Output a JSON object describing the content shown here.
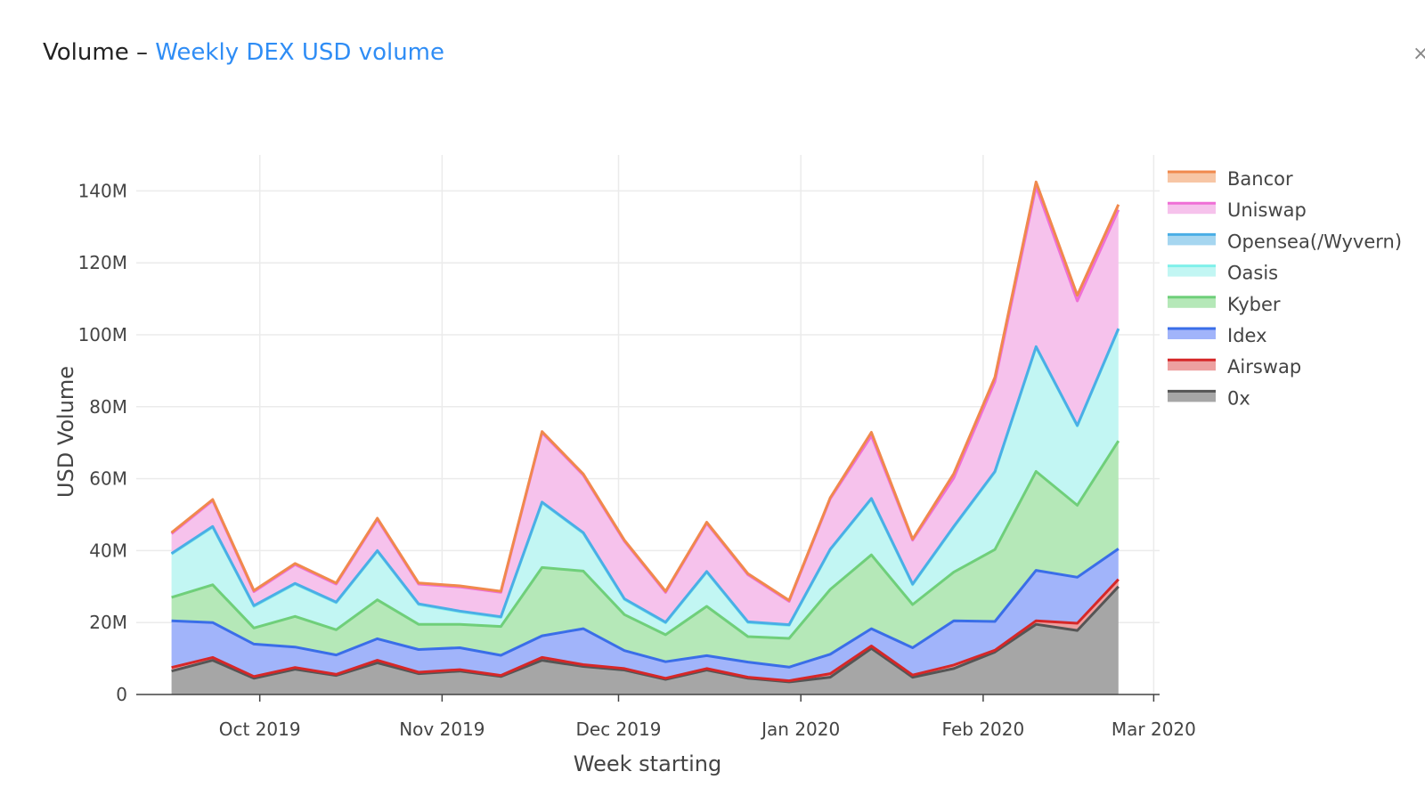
{
  "header": {
    "title_main": "Volume",
    "title_sep": "–",
    "title_sub": "Weekly DEX USD volume",
    "close_glyph": "×"
  },
  "chart_data": {
    "type": "area",
    "stacked": true,
    "title": "Weekly DEX USD volume",
    "xlabel": "Week starting",
    "ylabel": "USD Volume",
    "ylim": [
      0,
      150000000
    ],
    "xlim": [
      "2019-09-10",
      "2020-03-02"
    ],
    "yticks": [
      0,
      20000000,
      40000000,
      60000000,
      80000000,
      100000000,
      120000000,
      140000000
    ],
    "ytick_labels": [
      "0",
      "20M",
      "40M",
      "60M",
      "80M",
      "100M",
      "120M",
      "140M"
    ],
    "xticks": [
      "2019-10-01",
      "2019-11-01",
      "2019-12-01",
      "2020-01-01",
      "2020-02-01",
      "2020-03-01"
    ],
    "xtick_labels": [
      "Oct 2019",
      "Nov 2019",
      "Dec 2019",
      "Jan 2020",
      "Feb 2020",
      "Mar 2020"
    ],
    "grid": true,
    "legend_position": "right",
    "x": [
      "2019-09-16",
      "2019-09-23",
      "2019-09-30",
      "2019-10-07",
      "2019-10-14",
      "2019-10-21",
      "2019-10-28",
      "2019-11-04",
      "2019-11-11",
      "2019-11-18",
      "2019-11-25",
      "2019-12-02",
      "2019-12-09",
      "2019-12-16",
      "2019-12-23",
      "2019-12-30",
      "2020-01-06",
      "2020-01-13",
      "2020-01-20",
      "2020-01-27",
      "2020-02-03",
      "2020-02-10",
      "2020-02-17",
      "2020-02-24"
    ],
    "series": [
      {
        "name": "0x",
        "color": "#555555",
        "fill": "#a6a6a6",
        "values": [
          6.5,
          9.5,
          4.5,
          7,
          5.3,
          8.8,
          5.8,
          6.5,
          5,
          9.5,
          7.8,
          6.8,
          4.2,
          6.8,
          4.5,
          3.5,
          4.8,
          12.8,
          4.8,
          7.2,
          11.8,
          19.5,
          17.8,
          30
        ]
      },
      {
        "name": "Airswap",
        "color": "#d62728",
        "fill": "#eda0a0",
        "values": [
          1,
          0.8,
          0.5,
          0.5,
          0.3,
          0.7,
          0.4,
          0.4,
          0.3,
          0.8,
          0.5,
          0.4,
          0.3,
          0.4,
          0.3,
          0.3,
          1,
          0.7,
          0.6,
          1,
          0.5,
          1,
          2,
          2
        ]
      },
      {
        "name": "Idex",
        "color": "#3a6ee8",
        "fill": "#a1b4fa",
        "values": [
          13,
          9.7,
          9,
          5.7,
          5.4,
          6,
          6.3,
          6.1,
          5.6,
          6,
          10,
          5,
          4.6,
          3.6,
          4.2,
          3.8,
          5.4,
          4.8,
          7.6,
          12.3,
          8,
          14,
          12.8,
          8.5
        ]
      },
      {
        "name": "Kyber",
        "color": "#6fcf7a",
        "fill": "#b5e8b8",
        "values": [
          6.5,
          10.5,
          4.5,
          8.5,
          7,
          10.8,
          7,
          6.5,
          8,
          19,
          16,
          10,
          7.5,
          13.7,
          7.1,
          8,
          18,
          20.5,
          12,
          13.5,
          20,
          27.5,
          20,
          30
        ]
      },
      {
        "name": "Oasis",
        "color": "#7ff0ea",
        "fill": "#c2f6f3",
        "values": [
          12,
          16,
          6,
          9,
          7.5,
          13.5,
          5.5,
          3.5,
          2.5,
          18,
          10.5,
          4.2,
          3.3,
          9.5,
          3.9,
          3.6,
          11,
          15.5,
          5.5,
          12.5,
          21.5,
          34.5,
          22,
          31
        ]
      },
      {
        "name": "Opensea(/Wyvern)",
        "color": "#4aaee6",
        "fill": "#a6d6f0",
        "values": [
          0.2,
          0.2,
          0.2,
          0.2,
          0.2,
          0.2,
          0.2,
          0.2,
          0.2,
          0.2,
          0.2,
          0.2,
          0.2,
          0.2,
          0.2,
          0.2,
          0.2,
          0.2,
          0.2,
          0.2,
          0.2,
          0.2,
          0.2,
          0.2
        ]
      },
      {
        "name": "Uniswap",
        "color": "#ef6fd6",
        "fill": "#f6c2ec",
        "values": [
          5.5,
          7.2,
          3.9,
          5.2,
          5,
          8.7,
          5.5,
          6.7,
          6.8,
          19.3,
          16,
          16,
          8.3,
          13.4,
          13.1,
          6.5,
          14,
          17.4,
          12.2,
          13.5,
          25,
          44.5,
          34.6,
          33
        ]
      },
      {
        "name": "Bancor",
        "color": "#f0894d",
        "fill": "#f7c6a5",
        "values": [
          0.3,
          0.3,
          0.3,
          0.3,
          0.3,
          0.3,
          0.3,
          0.3,
          0.3,
          0.3,
          0.3,
          0.3,
          0.3,
          0.3,
          0.3,
          0.3,
          0.3,
          1,
          0.3,
          1.2,
          1.2,
          1.3,
          1.6,
          1.5
        ]
      }
    ]
  }
}
